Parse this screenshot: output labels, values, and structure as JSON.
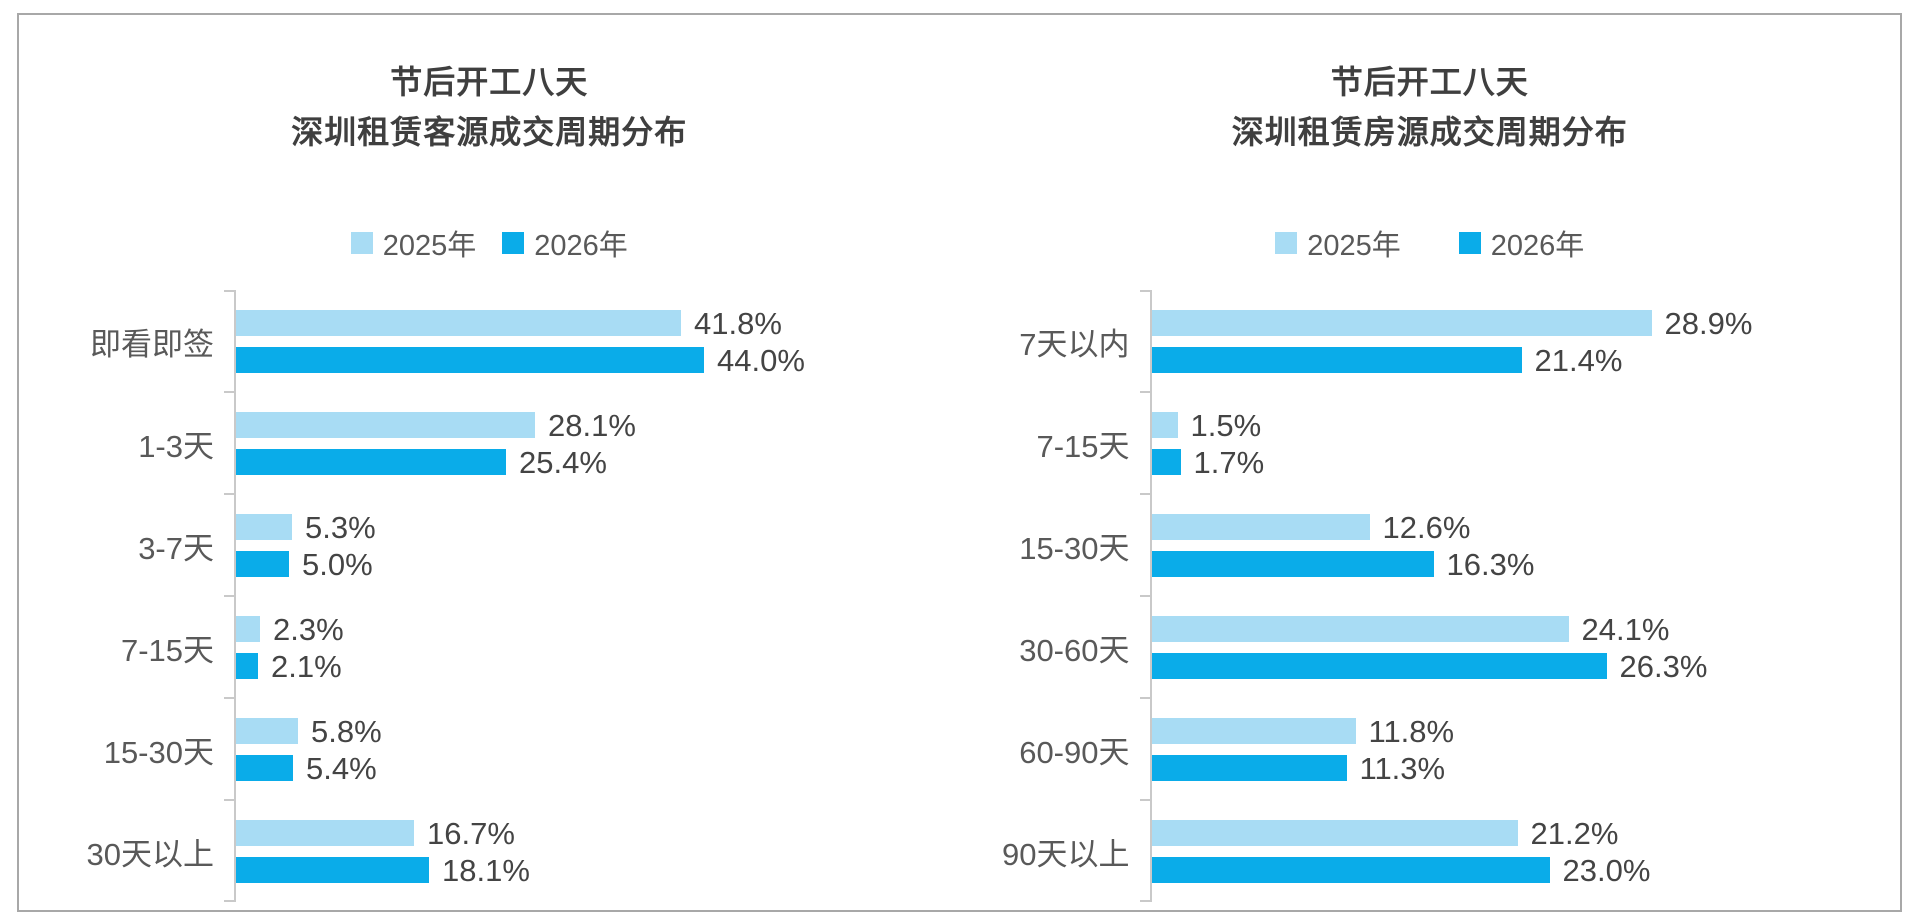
{
  "colors": {
    "series_2025": "#a8dcf4",
    "series_2026": "#0aace9",
    "axis": "#c9c9c9",
    "title_text": "#3f3f3f",
    "category_text": "#595959",
    "value_text": "#444444",
    "frame_border": "#a8a8a8"
  },
  "chart_data": [
    {
      "type": "bar",
      "orientation": "horizontal",
      "title_line1": "节后开工八天",
      "title_line2": "深圳租赁客源成交周期分布",
      "legend_position": "top",
      "grid": false,
      "value_suffix": "%",
      "xlim": [
        0,
        62
      ],
      "categories": [
        "即看即签",
        "1-3天",
        "3-7天",
        "7-15天",
        "15-30天",
        "30天以上"
      ],
      "series": [
        {
          "name": "2025年",
          "values": [
            41.8,
            28.1,
            5.3,
            2.3,
            5.8,
            16.7
          ]
        },
        {
          "name": "2026年",
          "values": [
            44.0,
            25.4,
            5.0,
            2.1,
            5.4,
            18.1
          ]
        }
      ]
    },
    {
      "type": "bar",
      "orientation": "horizontal",
      "title_line1": "节后开工八天",
      "title_line2": "深圳租赁房源成交周期分布",
      "legend_position": "top",
      "grid": false,
      "value_suffix": "%",
      "xlim": [
        0,
        40.5
      ],
      "categories": [
        "7天以内",
        "7-15天",
        "15-30天",
        "30-60天",
        "60-90天",
        "90天以上"
      ],
      "series": [
        {
          "name": "2025年",
          "values": [
            28.9,
            1.5,
            12.6,
            24.1,
            11.8,
            21.2
          ]
        },
        {
          "name": "2026年",
          "values": [
            21.4,
            1.7,
            16.3,
            26.3,
            11.3,
            23.0
          ]
        }
      ]
    }
  ]
}
